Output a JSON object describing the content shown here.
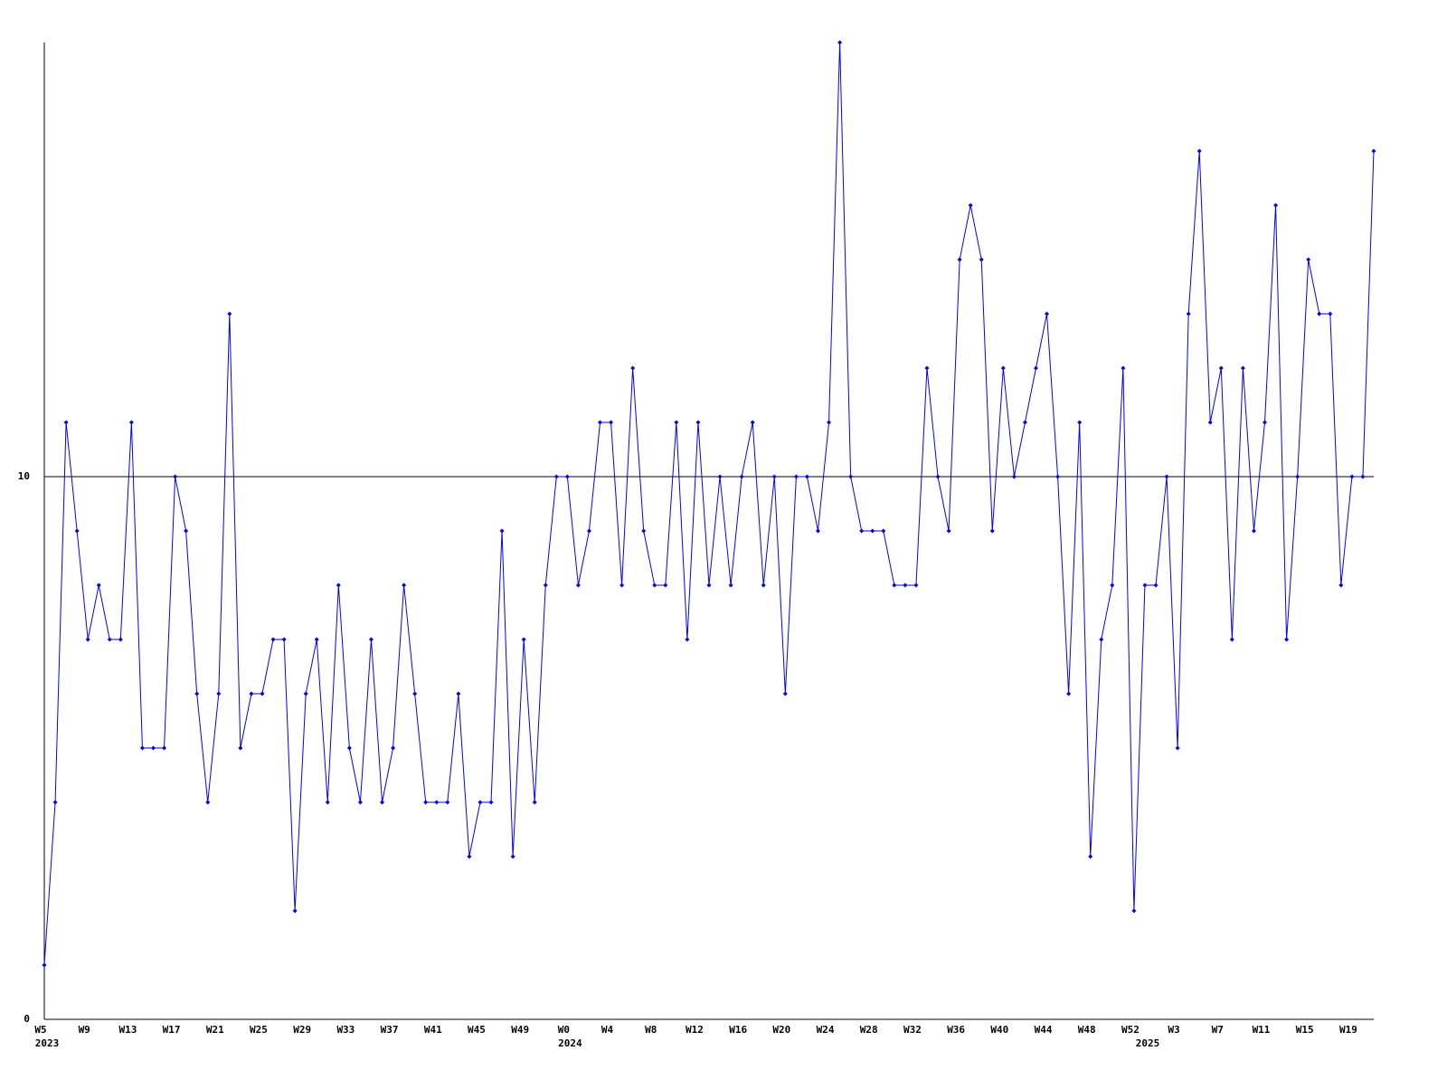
{
  "chart_data": {
    "type": "line",
    "categories": [
      "W5",
      null,
      null,
      null,
      "W9",
      null,
      null,
      null,
      "W13",
      null,
      null,
      null,
      "W17",
      null,
      null,
      null,
      "W21",
      null,
      null,
      null,
      "W25",
      null,
      null,
      null,
      "W29",
      null,
      null,
      null,
      "W33",
      null,
      null,
      null,
      "W37",
      null,
      null,
      null,
      "W41",
      null,
      null,
      null,
      "W45",
      null,
      null,
      null,
      "W49",
      null,
      null,
      null,
      "W0",
      null,
      null,
      null,
      "W4",
      null,
      null,
      null,
      "W8",
      null,
      null,
      null,
      "W12",
      null,
      null,
      null,
      "W16",
      null,
      null,
      null,
      "W20",
      null,
      null,
      null,
      "W24",
      null,
      null,
      null,
      "W28",
      null,
      null,
      null,
      "W32",
      null,
      null,
      null,
      "W36",
      null,
      null,
      null,
      "W40",
      null,
      null,
      null,
      "W44",
      null,
      null,
      null,
      "W48",
      null,
      null,
      null,
      "W52",
      null,
      null,
      null,
      "W3",
      null,
      null,
      null,
      "W7",
      null,
      null,
      null,
      "W11",
      null,
      null,
      null,
      "W15",
      null,
      null,
      null,
      "W19",
      null,
      null
    ],
    "year_labels": [
      "2023",
      null,
      null,
      null,
      null,
      null,
      null,
      null,
      null,
      null,
      null,
      null,
      null,
      null,
      null,
      null,
      null,
      null,
      null,
      null,
      null,
      null,
      null,
      null,
      null,
      null,
      null,
      null,
      null,
      null,
      null,
      null,
      null,
      null,
      null,
      null,
      null,
      null,
      null,
      null,
      null,
      null,
      null,
      null,
      null,
      null,
      null,
      null,
      "2024",
      null,
      null,
      null,
      null,
      null,
      null,
      null,
      null,
      null,
      null,
      null,
      null,
      null,
      null,
      null,
      null,
      null,
      null,
      null,
      null,
      null,
      null,
      null,
      null,
      null,
      null,
      null,
      null,
      null,
      null,
      null,
      null,
      null,
      null,
      null,
      null,
      null,
      null,
      null,
      null,
      null,
      null,
      null,
      null,
      null,
      null,
      null,
      null,
      null,
      null,
      null,
      null,
      "2025",
      null,
      null,
      null,
      null,
      null,
      null,
      null,
      null,
      null,
      null,
      null,
      null,
      null,
      null,
      null,
      null,
      null,
      null,
      null,
      null,
      null
    ],
    "values": [
      1,
      4,
      11,
      9,
      7,
      8,
      7,
      7,
      11,
      5,
      5,
      5,
      10,
      9,
      6,
      4,
      6,
      13,
      5,
      6,
      6,
      7,
      7,
      2,
      6,
      7,
      4,
      8,
      5,
      4,
      7,
      4,
      5,
      8,
      6,
      4,
      4,
      4,
      6,
      3,
      4,
      4,
      9,
      3,
      7,
      4,
      8,
      10,
      10,
      8,
      9,
      11,
      11,
      8,
      12,
      9,
      8,
      8,
      11,
      7,
      11,
      8,
      10,
      8,
      10,
      11,
      8,
      10,
      6,
      10,
      10,
      9,
      11,
      18,
      10,
      9,
      9,
      9,
      8,
      8,
      8,
      12,
      10,
      9,
      14,
      15,
      14,
      9,
      12,
      10,
      11,
      12,
      13,
      10,
      6,
      11,
      3,
      7,
      8,
      12,
      2,
      8,
      8,
      10,
      5,
      13,
      16,
      11,
      12,
      7,
      12,
      9,
      11,
      15,
      7,
      10,
      14,
      13,
      13,
      8,
      10,
      10,
      16
    ],
    "color": "#0000ff",
    "ylim": [
      0,
      18
    ],
    "yticks": [
      0,
      10
    ],
    "grid": true
  }
}
